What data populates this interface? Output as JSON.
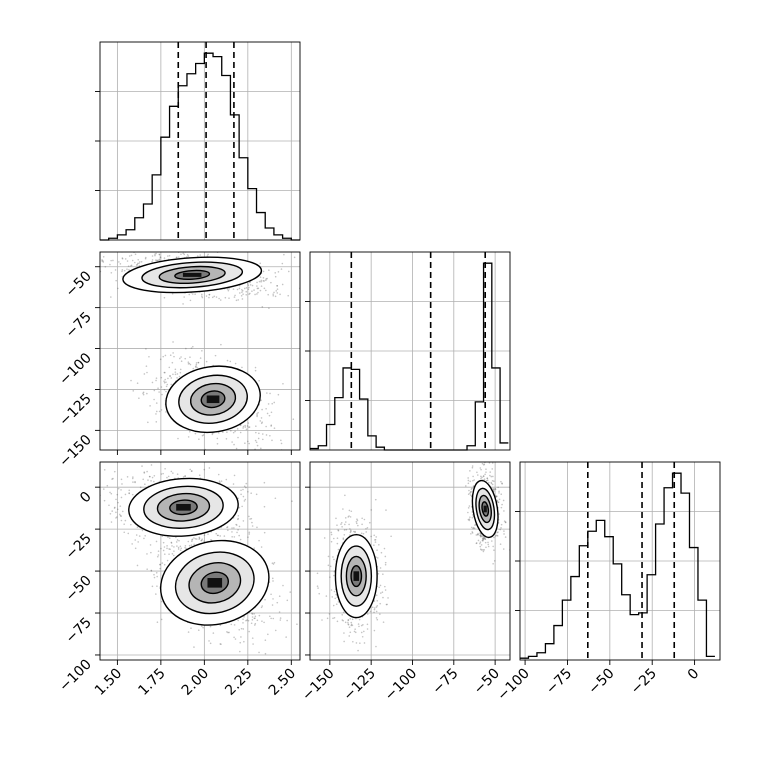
{
  "chart_data": {
    "type": "corner",
    "title": "",
    "parameters": [
      {
        "index": 0,
        "label": "",
        "range": [
          1.4,
          2.55
        ],
        "ticks": [
          1.5,
          1.75,
          2.0,
          2.25,
          2.5
        ],
        "tick_labels": [
          "1.50",
          "1.75",
          "2.00",
          "2.25",
          "2.50"
        ]
      },
      {
        "index": 1,
        "label": "",
        "range": [
          -162,
          -41
        ],
        "ticks": [
          -150,
          -125,
          -100,
          -75,
          -50
        ],
        "tick_labels": [
          "−150",
          "−125",
          "−100",
          "−75",
          "−50"
        ]
      },
      {
        "index": 2,
        "label": "",
        "range": [
          -103,
          15
        ],
        "ticks": [
          -100,
          -75,
          -50,
          -25,
          0
        ],
        "tick_labels": [
          "−100",
          "−75",
          "−50",
          "−25",
          "0"
        ]
      }
    ],
    "histograms": [
      {
        "param": 0,
        "bin_edges": [
          1.4,
          1.45,
          1.5,
          1.55,
          1.6,
          1.65,
          1.7,
          1.75,
          1.8,
          1.85,
          1.9,
          1.95,
          2.0,
          2.05,
          2.1,
          2.15,
          2.2,
          2.25,
          2.3,
          2.35,
          2.4,
          2.45,
          2.5,
          2.55
        ],
        "counts": [
          0,
          1,
          3,
          6,
          13,
          21,
          38,
          60,
          78,
          90,
          97,
          103,
          109,
          107,
          96,
          73,
          48,
          30,
          16,
          7,
          3,
          1,
          0
        ],
        "quantiles": [
          1.85,
          2.01,
          2.17
        ]
      },
      {
        "param": 1,
        "bin_edges": [
          -162,
          -157,
          -152,
          -147,
          -142,
          -137,
          -132,
          -127,
          -122,
          -117,
          -112,
          -107,
          -102,
          -97,
          -92,
          -87,
          -82,
          -77,
          -72,
          -67,
          -62,
          -57,
          -52,
          -47,
          -42
        ],
        "counts": [
          1,
          3,
          18,
          37,
          58,
          57,
          36,
          10,
          2,
          0,
          0,
          0,
          0,
          0,
          0,
          0,
          0,
          0,
          0,
          3,
          34,
          132,
          58,
          5
        ],
        "quantiles": [
          -137,
          -89,
          -56
        ]
      },
      {
        "param": 2,
        "bin_edges": [
          -103,
          -98,
          -93,
          -88,
          -83,
          -78,
          -73,
          -68,
          -63,
          -58,
          -53,
          -48,
          -43,
          -38,
          -33,
          -28,
          -23,
          -18,
          -13,
          -8,
          -3,
          2,
          7,
          12
        ],
        "counts": [
          1,
          2,
          4,
          9,
          19,
          33,
          46,
          63,
          71,
          77,
          68,
          53,
          36,
          25,
          26,
          47,
          75,
          95,
          103,
          92,
          62,
          33,
          2
        ],
        "quantiles": [
          -63,
          -31,
          -12
        ]
      }
    ],
    "joint": [
      {
        "x_param": 0,
        "y_param": 1,
        "modes": [
          {
            "center": [
              1.93,
              -55
            ],
            "sd": [
              0.19,
              5.5
            ],
            "rho": -0.4,
            "weight": 0.5
          },
          {
            "center": [
              2.05,
              -131
            ],
            "sd": [
              0.13,
              10.5
            ],
            "rho": -0.35,
            "weight": 0.5
          }
        ]
      },
      {
        "x_param": 0,
        "y_param": 2,
        "modes": [
          {
            "center": [
              1.88,
              -12
            ],
            "sd": [
              0.15,
              9
            ],
            "rho": -0.2,
            "weight": 0.5
          },
          {
            "center": [
              2.06,
              -57
            ],
            "sd": [
              0.15,
              13
            ],
            "rho": -0.5,
            "weight": 0.5
          }
        ]
      },
      {
        "x_param": 1,
        "y_param": 2,
        "modes": [
          {
            "center": [
              -56,
              -13
            ],
            "sd": [
              3.5,
              9
            ],
            "rho": -0.1,
            "weight": 0.5
          },
          {
            "center": [
              -134,
              -53
            ],
            "sd": [
              6,
              13
            ],
            "rho": 0.0,
            "weight": 0.5
          }
        ]
      }
    ],
    "quantile_style": "dashed",
    "grid": true,
    "legend": "none",
    "colors": {
      "line": "#000000",
      "density": "#000000",
      "points": "#555555",
      "grid": "#b0b0b0"
    }
  }
}
